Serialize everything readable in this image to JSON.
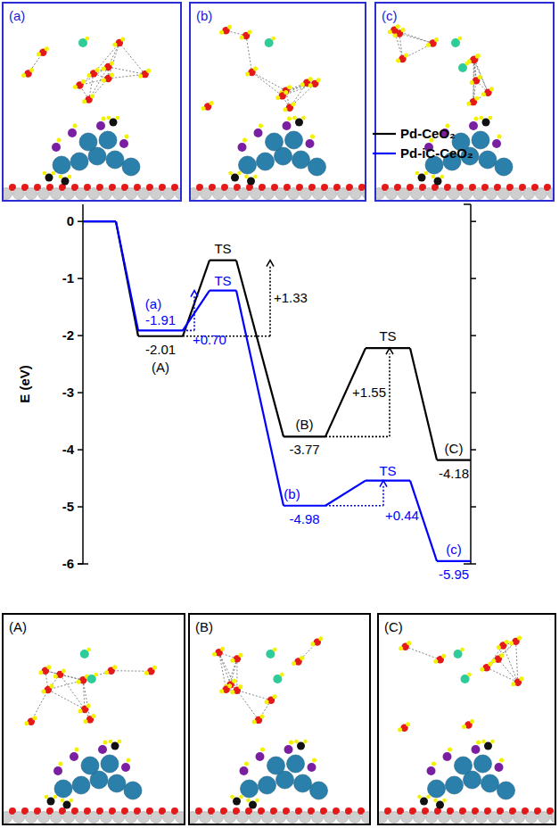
{
  "chart_data": {
    "type": "line",
    "y_label": "E (eV)",
    "ylim": [
      -6,
      0.3
    ],
    "yticks": [
      0,
      -1,
      -2,
      -3,
      -4,
      -5,
      -6
    ],
    "categories": [
      null,
      null,
      null,
      null,
      null,
      null
    ],
    "tick_labels": "y",
    "legend": "upper right",
    "series": [
      {
        "name": "Pd-CeO₂",
        "color": "#000000",
        "values": [
          0,
          -2.01,
          -0.68,
          -3.77,
          -2.22,
          -4.18
        ],
        "value_labels": [
          null,
          "-2.01",
          null,
          "-3.77",
          null,
          "-4.18"
        ],
        "point_labels": [
          null,
          "(A)",
          "TS",
          "(B)",
          "TS",
          "(C)"
        ],
        "barriers": [
          null,
          null,
          1.33,
          null,
          1.55,
          null
        ],
        "barrier_labels": [
          null,
          null,
          "+1.33",
          null,
          "+1.55",
          null
        ]
      },
      {
        "name": "Pd-iC-CeO₂",
        "color": "#0000ff",
        "values": [
          0,
          -1.91,
          -1.21,
          -4.98,
          -4.54,
          -5.95
        ],
        "value_labels": [
          null,
          "-1.91",
          null,
          "-4.98",
          null,
          "-5.95"
        ],
        "point_labels": [
          null,
          "(a)",
          "TS",
          "(b)",
          "TS",
          "(c)"
        ],
        "barriers": [
          null,
          null,
          0.7,
          null,
          0.44,
          null
        ],
        "barrier_labels": [
          null,
          null,
          "+0.70",
          null,
          "+0.44",
          null
        ]
      }
    ],
    "panels": {
      "top": [
        "(a)",
        "(b)",
        "(c)"
      ],
      "bottom": [
        "(A)",
        "(B)",
        "(C)"
      ]
    }
  }
}
